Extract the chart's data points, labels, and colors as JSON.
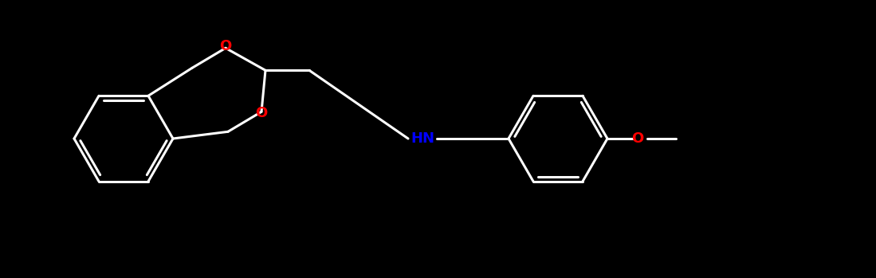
{
  "background_color": "#000000",
  "bond_color": "#ffffff",
  "oxygen_color": "#ff0000",
  "nitrogen_color": "#0000ff",
  "lw": 2.2,
  "figw": 10.99,
  "figh": 3.49,
  "xlim": [
    0,
    10.99
  ],
  "ylim": [
    0,
    3.49
  ]
}
